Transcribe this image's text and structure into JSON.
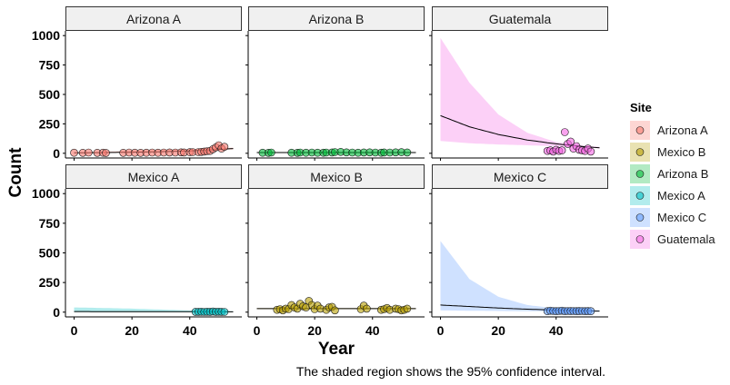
{
  "chart_data": {
    "type": "scatter",
    "facet_titles": [
      "Arizona A",
      "Arizona B",
      "Guatemala",
      "Mexico A",
      "Mexico B",
      "Mexico C"
    ],
    "xlabel": "Year",
    "ylabel": "Count",
    "xlim": [
      -3,
      58
    ],
    "ylim": [
      -40,
      1040
    ],
    "x_ticks": [
      0,
      20,
      40
    ],
    "y_ticks": [
      0,
      250,
      500,
      750,
      1000
    ],
    "grid": false,
    "legend": {
      "title": "Site",
      "position": "right",
      "entries": [
        "Arizona A",
        "Mexico B",
        "Arizona B",
        "Mexico A",
        "Mexico C",
        "Guatemala"
      ]
    },
    "caption": "The shaded region shows the 95% confidence interval.",
    "series": [
      {
        "name": "Arizona A",
        "color": "#F8766D",
        "points": [
          [
            0,
            5
          ],
          [
            3,
            4
          ],
          [
            5,
            6
          ],
          [
            8,
            4
          ],
          [
            10,
            5
          ],
          [
            11,
            3
          ],
          [
            17,
            4
          ],
          [
            19,
            6
          ],
          [
            21,
            5
          ],
          [
            23,
            4
          ],
          [
            25,
            5
          ],
          [
            27,
            6
          ],
          [
            29,
            5
          ],
          [
            31,
            6
          ],
          [
            33,
            7
          ],
          [
            35,
            6
          ],
          [
            37,
            8
          ],
          [
            38,
            7
          ],
          [
            40,
            9
          ],
          [
            41,
            10
          ],
          [
            43,
            10
          ],
          [
            44,
            12
          ],
          [
            45,
            15
          ],
          [
            46,
            18
          ],
          [
            47,
            20
          ],
          [
            48,
            35
          ],
          [
            49,
            50
          ],
          [
            50,
            68
          ],
          [
            51,
            40
          ],
          [
            52,
            55
          ]
        ],
        "fit": [
          [
            0,
            4
          ],
          [
            10,
            6
          ],
          [
            20,
            9
          ],
          [
            30,
            13
          ],
          [
            40,
            20
          ],
          [
            50,
            32
          ],
          [
            55,
            40
          ]
        ],
        "ci_upper": [
          [
            0,
            6
          ],
          [
            55,
            48
          ]
        ],
        "ci_lower": [
          [
            0,
            2
          ],
          [
            55,
            32
          ]
        ]
      },
      {
        "name": "Arizona B",
        "color": "#00BA38",
        "points": [
          [
            2,
            5
          ],
          [
            4,
            4
          ],
          [
            5,
            6
          ],
          [
            12,
            5
          ],
          [
            14,
            4
          ],
          [
            15,
            6
          ],
          [
            17,
            5
          ],
          [
            19,
            6
          ],
          [
            21,
            5
          ],
          [
            23,
            5
          ],
          [
            24,
            6
          ],
          [
            26,
            7
          ],
          [
            27,
            10
          ],
          [
            29,
            12
          ],
          [
            31,
            8
          ],
          [
            33,
            6
          ],
          [
            35,
            5
          ],
          [
            37,
            7
          ],
          [
            39,
            8
          ],
          [
            41,
            6
          ],
          [
            43,
            5
          ],
          [
            44,
            7
          ],
          [
            46,
            6
          ],
          [
            48,
            8
          ],
          [
            50,
            9
          ],
          [
            52,
            7
          ]
        ],
        "fit": [
          [
            0,
            6
          ],
          [
            55,
            6
          ]
        ],
        "ci_upper": [
          [
            0,
            9
          ],
          [
            55,
            9
          ]
        ],
        "ci_lower": [
          [
            0,
            3
          ],
          [
            55,
            3
          ]
        ]
      },
      {
        "name": "Guatemala",
        "color": "#F564E3",
        "points": [
          [
            37,
            20
          ],
          [
            38,
            25
          ],
          [
            39,
            15
          ],
          [
            40,
            30
          ],
          [
            41,
            20
          ],
          [
            42,
            25
          ],
          [
            43,
            180
          ],
          [
            44,
            80
          ],
          [
            45,
            100
          ],
          [
            46,
            40
          ],
          [
            47,
            60
          ],
          [
            48,
            30
          ],
          [
            49,
            25
          ],
          [
            50,
            20
          ],
          [
            51,
            40
          ],
          [
            52,
            15
          ]
        ],
        "fit": [
          [
            0,
            320
          ],
          [
            10,
            225
          ],
          [
            20,
            160
          ],
          [
            30,
            113
          ],
          [
            40,
            80
          ],
          [
            50,
            56
          ],
          [
            55,
            47
          ]
        ],
        "ci_upper": [
          [
            0,
            980
          ],
          [
            10,
            600
          ],
          [
            20,
            330
          ],
          [
            30,
            175
          ],
          [
            40,
            95
          ],
          [
            50,
            62
          ],
          [
            55,
            55
          ]
        ],
        "ci_lower": [
          [
            0,
            105
          ],
          [
            10,
            85
          ],
          [
            20,
            75
          ],
          [
            30,
            68
          ],
          [
            40,
            60
          ],
          [
            50,
            52
          ],
          [
            55,
            40
          ]
        ]
      },
      {
        "name": "Mexico A",
        "color": "#00BFC4",
        "points": [
          [
            42,
            3
          ],
          [
            43,
            3
          ],
          [
            44,
            4
          ],
          [
            45,
            2
          ],
          [
            46,
            4
          ],
          [
            47,
            3
          ],
          [
            48,
            5
          ],
          [
            49,
            3
          ],
          [
            50,
            4
          ],
          [
            51,
            3
          ],
          [
            52,
            2
          ]
        ],
        "fit": [
          [
            0,
            5
          ],
          [
            55,
            3
          ]
        ],
        "ci_upper": [
          [
            0,
            40
          ],
          [
            20,
            30
          ],
          [
            40,
            14
          ],
          [
            55,
            8
          ]
        ],
        "ci_lower": [
          [
            0,
            0
          ],
          [
            55,
            0
          ]
        ]
      },
      {
        "name": "Mexico B",
        "color": "#B79F00",
        "points": [
          [
            7,
            20
          ],
          [
            8,
            25
          ],
          [
            9,
            15
          ],
          [
            10,
            30
          ],
          [
            11,
            25
          ],
          [
            12,
            60
          ],
          [
            13,
            40
          ],
          [
            14,
            30
          ],
          [
            15,
            70
          ],
          [
            16,
            50
          ],
          [
            17,
            40
          ],
          [
            18,
            95
          ],
          [
            19,
            60
          ],
          [
            20,
            25
          ],
          [
            21,
            55
          ],
          [
            22,
            30
          ],
          [
            24,
            20
          ],
          [
            25,
            40
          ],
          [
            26,
            45
          ],
          [
            27,
            15
          ],
          [
            36,
            25
          ],
          [
            37,
            55
          ],
          [
            38,
            30
          ],
          [
            43,
            20
          ],
          [
            44,
            25
          ],
          [
            45,
            35
          ],
          [
            46,
            20
          ],
          [
            48,
            30
          ],
          [
            49,
            25
          ],
          [
            50,
            15
          ],
          [
            51,
            20
          ],
          [
            52,
            30
          ]
        ],
        "fit": [
          [
            0,
            30
          ],
          [
            55,
            30
          ]
        ],
        "ci_upper": [
          [
            0,
            35
          ],
          [
            55,
            35
          ]
        ],
        "ci_lower": [
          [
            0,
            25
          ],
          [
            55,
            25
          ]
        ]
      },
      {
        "name": "Mexico C",
        "color": "#619CFF",
        "points": [
          [
            37,
            8
          ],
          [
            38,
            12
          ],
          [
            39,
            10
          ],
          [
            40,
            8
          ],
          [
            41,
            10
          ],
          [
            42,
            12
          ],
          [
            43,
            8
          ],
          [
            44,
            10
          ],
          [
            45,
            9
          ],
          [
            46,
            10
          ],
          [
            47,
            8
          ],
          [
            48,
            9
          ],
          [
            49,
            10
          ],
          [
            50,
            8
          ],
          [
            51,
            9
          ],
          [
            52,
            8
          ]
        ],
        "fit": [
          [
            0,
            60
          ],
          [
            10,
            48
          ],
          [
            20,
            35
          ],
          [
            30,
            25
          ],
          [
            40,
            17
          ],
          [
            50,
            11
          ],
          [
            55,
            9
          ]
        ],
        "ci_upper": [
          [
            0,
            600
          ],
          [
            10,
            280
          ],
          [
            20,
            130
          ],
          [
            30,
            60
          ],
          [
            40,
            32
          ],
          [
            50,
            20
          ],
          [
            55,
            15
          ]
        ],
        "ci_lower": [
          [
            0,
            15
          ],
          [
            10,
            12
          ],
          [
            20,
            10
          ],
          [
            30,
            8
          ],
          [
            40,
            6
          ],
          [
            50,
            4
          ],
          [
            55,
            4
          ]
        ]
      }
    ],
    "panel_series_order": [
      "Arizona A",
      "Arizona B",
      "Guatemala",
      "Mexico A",
      "Mexico B",
      "Mexico C"
    ]
  }
}
